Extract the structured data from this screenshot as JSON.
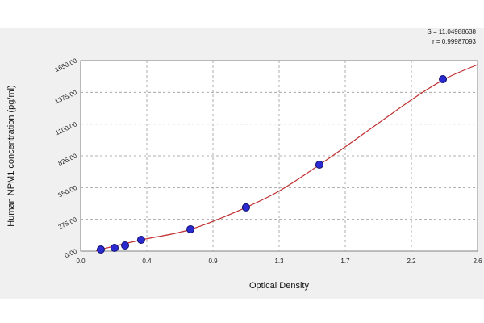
{
  "chart_data": {
    "type": "scatter",
    "annotations": [
      "S = 11.04988638",
      "r = 0.99987093"
    ],
    "x_label": "Optical Density",
    "y_label": "Human NPM1 concentration (pg/ml)",
    "xlim": [
      0,
      2.6
    ],
    "xticks": [
      {
        "value": 0,
        "label": "0.0"
      },
      {
        "value": 0.4333,
        "label": "0.4"
      },
      {
        "value": 0.8667,
        "label": "0.9"
      },
      1.3,
      {
        "value": 1.7333,
        "label": "1.7"
      },
      {
        "value": 2.1667,
        "label": "2.2"
      },
      2.6
    ],
    "ylim": [
      0,
      1650
    ],
    "yticks": [
      {
        "value": 0,
        "label": "0.00"
      },
      {
        "value": 275,
        "label": "275.00"
      },
      {
        "value": 550,
        "label": "550.00"
      },
      {
        "value": 825,
        "label": "825.00"
      },
      {
        "value": 1100,
        "label": "1100.00"
      },
      {
        "value": 1375,
        "label": "1375.00"
      },
      {
        "value": 1650,
        "label": "1650.00"
      }
    ],
    "grid": true,
    "series": [
      {
        "kind": "points",
        "color": "#2a2ad0",
        "x": [
          0.132,
          0.222,
          0.291,
          0.396,
          0.719,
          1.083,
          1.564,
          2.373
        ],
        "values": [
          14,
          28,
          49,
          98,
          189,
          378,
          748,
          1489
        ]
      },
      {
        "kind": "curve",
        "color": "#c03030",
        "x": [
          0.1,
          0.4,
          0.7,
          1.0,
          1.3,
          1.6,
          1.9,
          2.2,
          2.4,
          2.6
        ],
        "values": [
          5,
          98,
          180,
          330,
          520,
          780,
          1060,
          1340,
          1500,
          1615
        ]
      }
    ]
  }
}
